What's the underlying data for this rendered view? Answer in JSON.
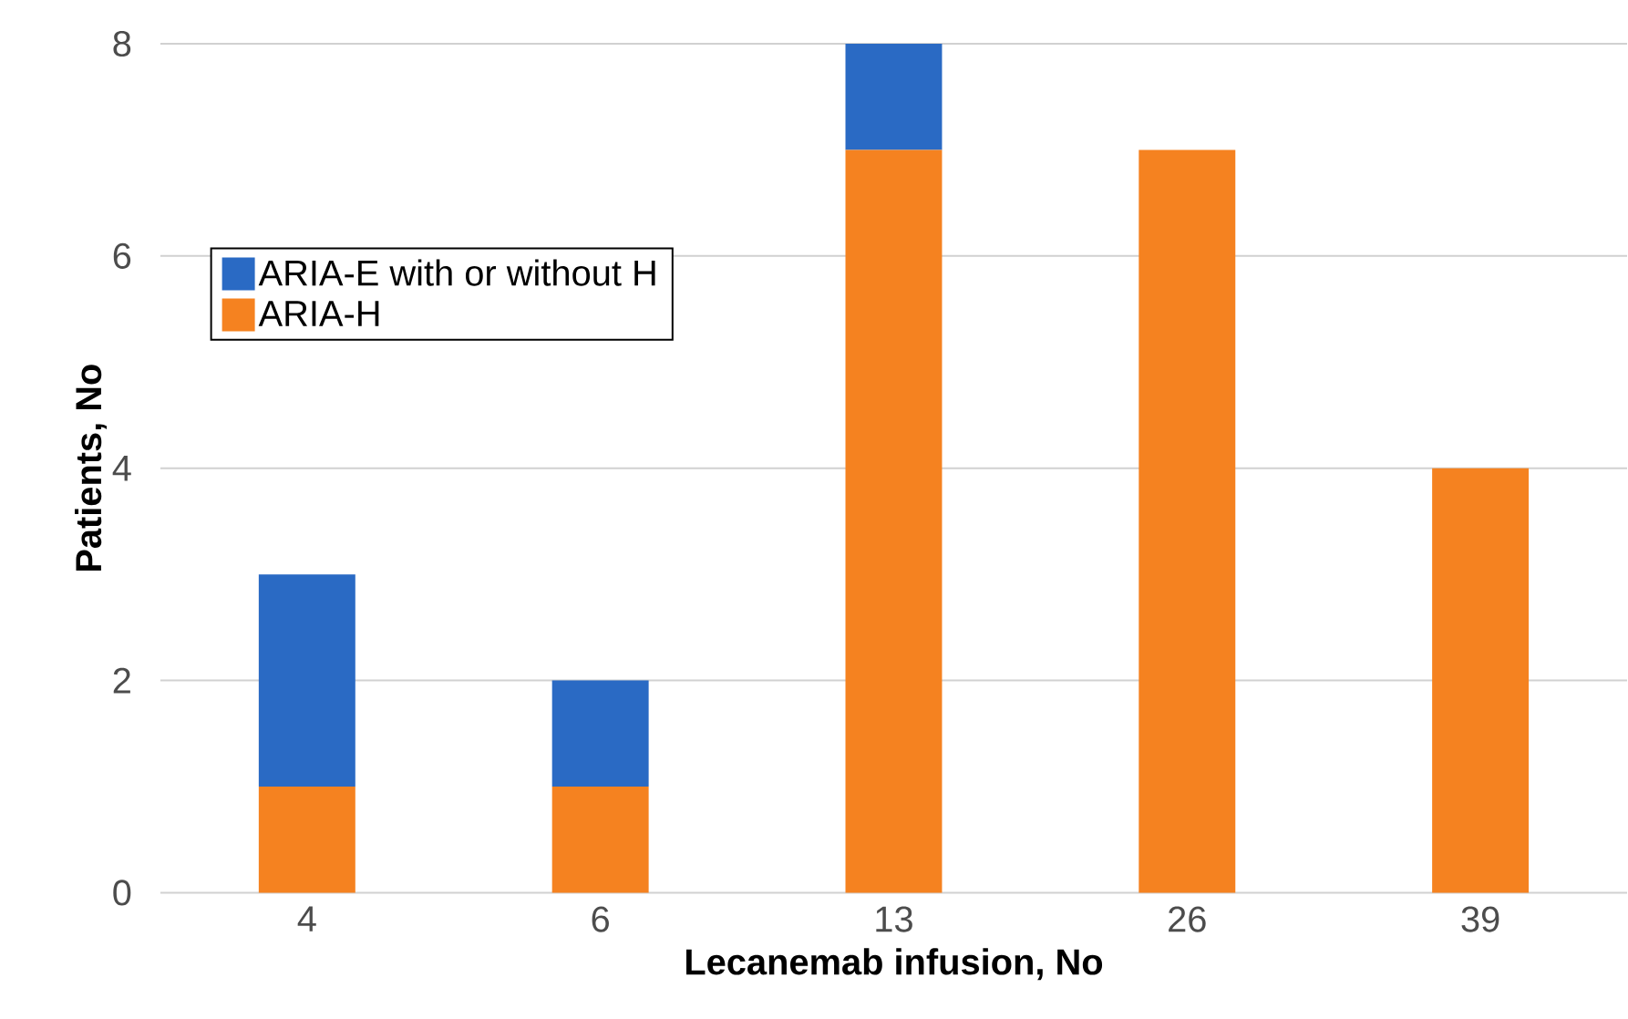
{
  "chart_data": {
    "type": "bar",
    "stacked": true,
    "xlabel": "Lecanemab infusion, No",
    "ylabel": "Patients, No",
    "categories": [
      "4",
      "6",
      "13",
      "26",
      "39"
    ],
    "series": [
      {
        "name": "ARIA-H",
        "color": "#f58220",
        "values": [
          1,
          1,
          7,
          7,
          4
        ]
      },
      {
        "name": "ARIA-E with or without H",
        "color": "#2a6ac4",
        "values": [
          2,
          1,
          1,
          0,
          0
        ]
      }
    ],
    "ylim": [
      0,
      8
    ],
    "yticks": [
      0,
      2,
      4,
      6,
      8
    ],
    "grid": "y",
    "legend": "top left"
  }
}
